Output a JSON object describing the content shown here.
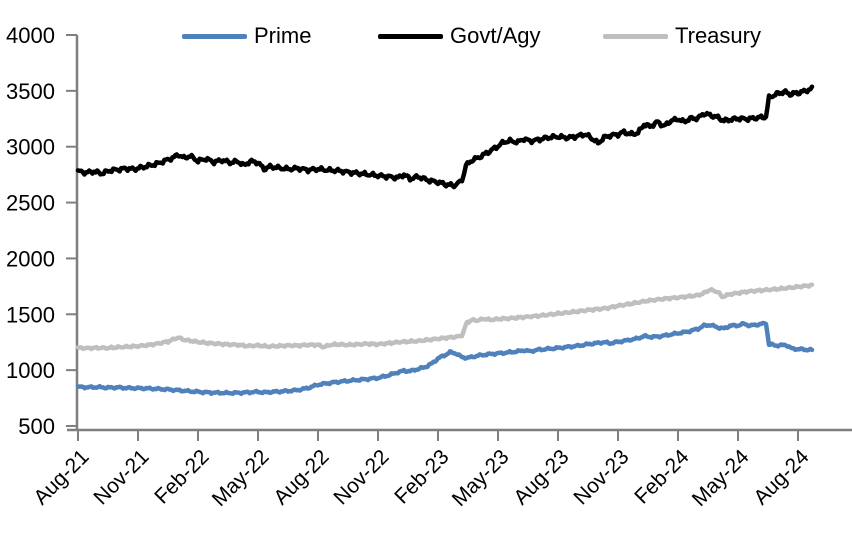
{
  "chart_data": {
    "type": "line",
    "title": "",
    "xlabel": "",
    "ylabel": "",
    "grid": false,
    "legend_position": "top",
    "x_unit": "months since Aug-21 (0 = Aug-21, 36 = Aug-24)",
    "x_tick_labels": [
      "Aug-21",
      "Nov-21",
      "Feb-22",
      "May-22",
      "Aug-22",
      "Nov-22",
      "Feb-23",
      "May-23",
      "Aug-23",
      "Nov-23",
      "Feb-24",
      "May-24",
      "Aug-24"
    ],
    "y_axis": {
      "min": 500,
      "max": 4000,
      "tick_step": 500,
      "tick_labels": [
        "500",
        "1000",
        "1500",
        "2000",
        "2500",
        "3000",
        "3500",
        "4000"
      ]
    },
    "series": [
      {
        "name": "Prime",
        "color": "#4F81BD",
        "points": [
          [
            0,
            850
          ],
          [
            0.5,
            846
          ],
          [
            1,
            848
          ],
          [
            1.5,
            843
          ],
          [
            2,
            845
          ],
          [
            2.5,
            840
          ],
          [
            3,
            838
          ],
          [
            3.5,
            836
          ],
          [
            4,
            832
          ],
          [
            4.5,
            827
          ],
          [
            5,
            820
          ],
          [
            5.5,
            812
          ],
          [
            6,
            806
          ],
          [
            6.5,
            800
          ],
          [
            7,
            797
          ],
          [
            7.5,
            795
          ],
          [
            8,
            797
          ],
          [
            8.5,
            801
          ],
          [
            9,
            806
          ],
          [
            9.3,
            800
          ],
          [
            9.6,
            804
          ],
          [
            10,
            808
          ],
          [
            10.5,
            813
          ],
          [
            11,
            822
          ],
          [
            11.5,
            840
          ],
          [
            12,
            870
          ],
          [
            12.5,
            883
          ],
          [
            13,
            895
          ],
          [
            13.5,
            904
          ],
          [
            14,
            912
          ],
          [
            14.5,
            921
          ],
          [
            15,
            930
          ],
          [
            15.5,
            952
          ],
          [
            16,
            980
          ],
          [
            16.3,
            995
          ],
          [
            16.6,
            990
          ],
          [
            17,
            1010
          ],
          [
            17.4,
            1030
          ],
          [
            17.7,
            1060
          ],
          [
            18,
            1105
          ],
          [
            18.3,
            1130
          ],
          [
            18.6,
            1160
          ],
          [
            18.9,
            1150
          ],
          [
            19.2,
            1115
          ],
          [
            19.5,
            1110
          ],
          [
            20,
            1130
          ],
          [
            20.5,
            1142
          ],
          [
            21,
            1150
          ],
          [
            21.5,
            1158
          ],
          [
            22,
            1168
          ],
          [
            22.3,
            1178
          ],
          [
            22.6,
            1168
          ],
          [
            23,
            1182
          ],
          [
            23.5,
            1190
          ],
          [
            24,
            1198
          ],
          [
            24.5,
            1208
          ],
          [
            25,
            1218
          ],
          [
            25.5,
            1232
          ],
          [
            26,
            1243
          ],
          [
            26.3,
            1250
          ],
          [
            26.6,
            1240
          ],
          [
            27,
            1253
          ],
          [
            27.5,
            1268
          ],
          [
            28,
            1285
          ],
          [
            28.3,
            1305
          ],
          [
            28.6,
            1298
          ],
          [
            29,
            1300
          ],
          [
            29.5,
            1315
          ],
          [
            30,
            1330
          ],
          [
            30.5,
            1345
          ],
          [
            31,
            1370
          ],
          [
            31.3,
            1398
          ],
          [
            31.6,
            1405
          ],
          [
            32,
            1382
          ],
          [
            32.3,
            1372
          ],
          [
            32.6,
            1398
          ],
          [
            33,
            1400
          ],
          [
            33.3,
            1415
          ],
          [
            33.6,
            1398
          ],
          [
            34,
            1408
          ],
          [
            34.4,
            1420
          ],
          [
            34.55,
            1230
          ],
          [
            35,
            1220
          ],
          [
            35.4,
            1226
          ],
          [
            35.7,
            1192
          ],
          [
            36,
            1188
          ],
          [
            36.3,
            1185
          ],
          [
            36.7,
            1180
          ]
        ]
      },
      {
        "name": "Govt/Agy",
        "color": "#000000",
        "points": [
          [
            0,
            2780
          ],
          [
            0.4,
            2768
          ],
          [
            0.8,
            2778
          ],
          [
            1.2,
            2760
          ],
          [
            1.6,
            2788
          ],
          [
            2,
            2795
          ],
          [
            2.4,
            2805
          ],
          [
            2.8,
            2798
          ],
          [
            3.2,
            2815
          ],
          [
            3.6,
            2832
          ],
          [
            4,
            2850
          ],
          [
            4.4,
            2878
          ],
          [
            4.8,
            2905
          ],
          [
            5,
            2930
          ],
          [
            5.3,
            2898
          ],
          [
            5.6,
            2918
          ],
          [
            6,
            2872
          ],
          [
            6.4,
            2892
          ],
          [
            6.8,
            2862
          ],
          [
            7.2,
            2880
          ],
          [
            7.6,
            2858
          ],
          [
            8,
            2868
          ],
          [
            8.3,
            2832
          ],
          [
            8.6,
            2870
          ],
          [
            9,
            2858
          ],
          [
            9.3,
            2800
          ],
          [
            9.6,
            2822
          ],
          [
            10,
            2812
          ],
          [
            10.5,
            2800
          ],
          [
            11,
            2806
          ],
          [
            11.5,
            2792
          ],
          [
            12,
            2800
          ],
          [
            12.5,
            2790
          ],
          [
            13,
            2786
          ],
          [
            13.5,
            2772
          ],
          [
            14,
            2762
          ],
          [
            14.5,
            2752
          ],
          [
            15,
            2742
          ],
          [
            15.5,
            2732
          ],
          [
            16,
            2722
          ],
          [
            16.3,
            2752
          ],
          [
            16.6,
            2712
          ],
          [
            17,
            2732
          ],
          [
            17.5,
            2700
          ],
          [
            18,
            2682
          ],
          [
            18.4,
            2662
          ],
          [
            18.8,
            2652
          ],
          [
            19,
            2672
          ],
          [
            19.2,
            2700
          ],
          [
            19.4,
            2830
          ],
          [
            19.7,
            2880
          ],
          [
            20,
            2900
          ],
          [
            20.5,
            2950
          ],
          [
            21,
            3005
          ],
          [
            21.3,
            3042
          ],
          [
            21.6,
            3052
          ],
          [
            22,
            3040
          ],
          [
            22.3,
            3072
          ],
          [
            22.6,
            3050
          ],
          [
            23,
            3062
          ],
          [
            23.5,
            3082
          ],
          [
            24,
            3090
          ],
          [
            24.5,
            3080
          ],
          [
            25,
            3095
          ],
          [
            25.3,
            3112
          ],
          [
            25.6,
            3088
          ],
          [
            26,
            3030
          ],
          [
            26.3,
            3082
          ],
          [
            26.6,
            3100
          ],
          [
            27,
            3110
          ],
          [
            27.3,
            3132
          ],
          [
            27.6,
            3112
          ],
          [
            28,
            3122
          ],
          [
            28.3,
            3200
          ],
          [
            28.6,
            3180
          ],
          [
            29,
            3222
          ],
          [
            29.3,
            3182
          ],
          [
            29.6,
            3228
          ],
          [
            30,
            3248
          ],
          [
            30.3,
            3222
          ],
          [
            30.6,
            3252
          ],
          [
            31,
            3255
          ],
          [
            31.3,
            3298
          ],
          [
            31.6,
            3282
          ],
          [
            32,
            3262
          ],
          [
            32.3,
            3232
          ],
          [
            32.6,
            3242
          ],
          [
            33,
            3252
          ],
          [
            33.5,
            3248
          ],
          [
            34,
            3260
          ],
          [
            34.4,
            3268
          ],
          [
            34.55,
            3440
          ],
          [
            34.8,
            3462
          ],
          [
            35,
            3475
          ],
          [
            35.3,
            3492
          ],
          [
            35.6,
            3470
          ],
          [
            36,
            3482
          ],
          [
            36.3,
            3495
          ],
          [
            36.7,
            3520
          ]
        ]
      },
      {
        "name": "Treasury",
        "color": "#BFBFBF",
        "points": [
          [
            0,
            1200
          ],
          [
            0.5,
            1196
          ],
          [
            1,
            1200
          ],
          [
            1.5,
            1198
          ],
          [
            2,
            1205
          ],
          [
            2.5,
            1210
          ],
          [
            3,
            1215
          ],
          [
            3.5,
            1224
          ],
          [
            4,
            1238
          ],
          [
            4.5,
            1256
          ],
          [
            5,
            1292
          ],
          [
            5.3,
            1272
          ],
          [
            6,
            1252
          ],
          [
            6.5,
            1242
          ],
          [
            7,
            1236
          ],
          [
            7.5,
            1230
          ],
          [
            8,
            1226
          ],
          [
            8.5,
            1216
          ],
          [
            9,
            1221
          ],
          [
            9.5,
            1212
          ],
          [
            10,
            1216
          ],
          [
            10.5,
            1221
          ],
          [
            11,
            1220
          ],
          [
            11.5,
            1226
          ],
          [
            12,
            1226
          ],
          [
            12.3,
            1206
          ],
          [
            12.6,
            1226
          ],
          [
            13,
            1231
          ],
          [
            13.5,
            1226
          ],
          [
            14,
            1231
          ],
          [
            14.5,
            1236
          ],
          [
            15,
            1231
          ],
          [
            15.5,
            1241
          ],
          [
            16,
            1250
          ],
          [
            16.5,
            1256
          ],
          [
            17,
            1261
          ],
          [
            17.5,
            1271
          ],
          [
            18,
            1281
          ],
          [
            18.5,
            1291
          ],
          [
            19,
            1301
          ],
          [
            19.2,
            1311
          ],
          [
            19.45,
            1428
          ],
          [
            19.7,
            1448
          ],
          [
            20,
            1445
          ],
          [
            20.3,
            1460
          ],
          [
            20.6,
            1450
          ],
          [
            21,
            1458
          ],
          [
            21.5,
            1462
          ],
          [
            22,
            1470
          ],
          [
            22.5,
            1478
          ],
          [
            23,
            1486
          ],
          [
            23.5,
            1496
          ],
          [
            24,
            1506
          ],
          [
            24.5,
            1516
          ],
          [
            25,
            1526
          ],
          [
            25.5,
            1538
          ],
          [
            26,
            1546
          ],
          [
            26.5,
            1556
          ],
          [
            27,
            1576
          ],
          [
            27.5,
            1590
          ],
          [
            28,
            1606
          ],
          [
            28.5,
            1622
          ],
          [
            29,
            1632
          ],
          [
            29.5,
            1642
          ],
          [
            30,
            1650
          ],
          [
            30.5,
            1660
          ],
          [
            31,
            1670
          ],
          [
            31.3,
            1690
          ],
          [
            31.6,
            1720
          ],
          [
            32,
            1700
          ],
          [
            32.2,
            1656
          ],
          [
            32.6,
            1680
          ],
          [
            33,
            1690
          ],
          [
            33.5,
            1704
          ],
          [
            34,
            1712
          ],
          [
            34.5,
            1720
          ],
          [
            35,
            1726
          ],
          [
            35.5,
            1736
          ],
          [
            36,
            1746
          ],
          [
            36.7,
            1760
          ]
        ]
      }
    ]
  },
  "colors": {
    "axis": "#7f7f7f",
    "text": "#000000",
    "background": "#ffffff"
  }
}
